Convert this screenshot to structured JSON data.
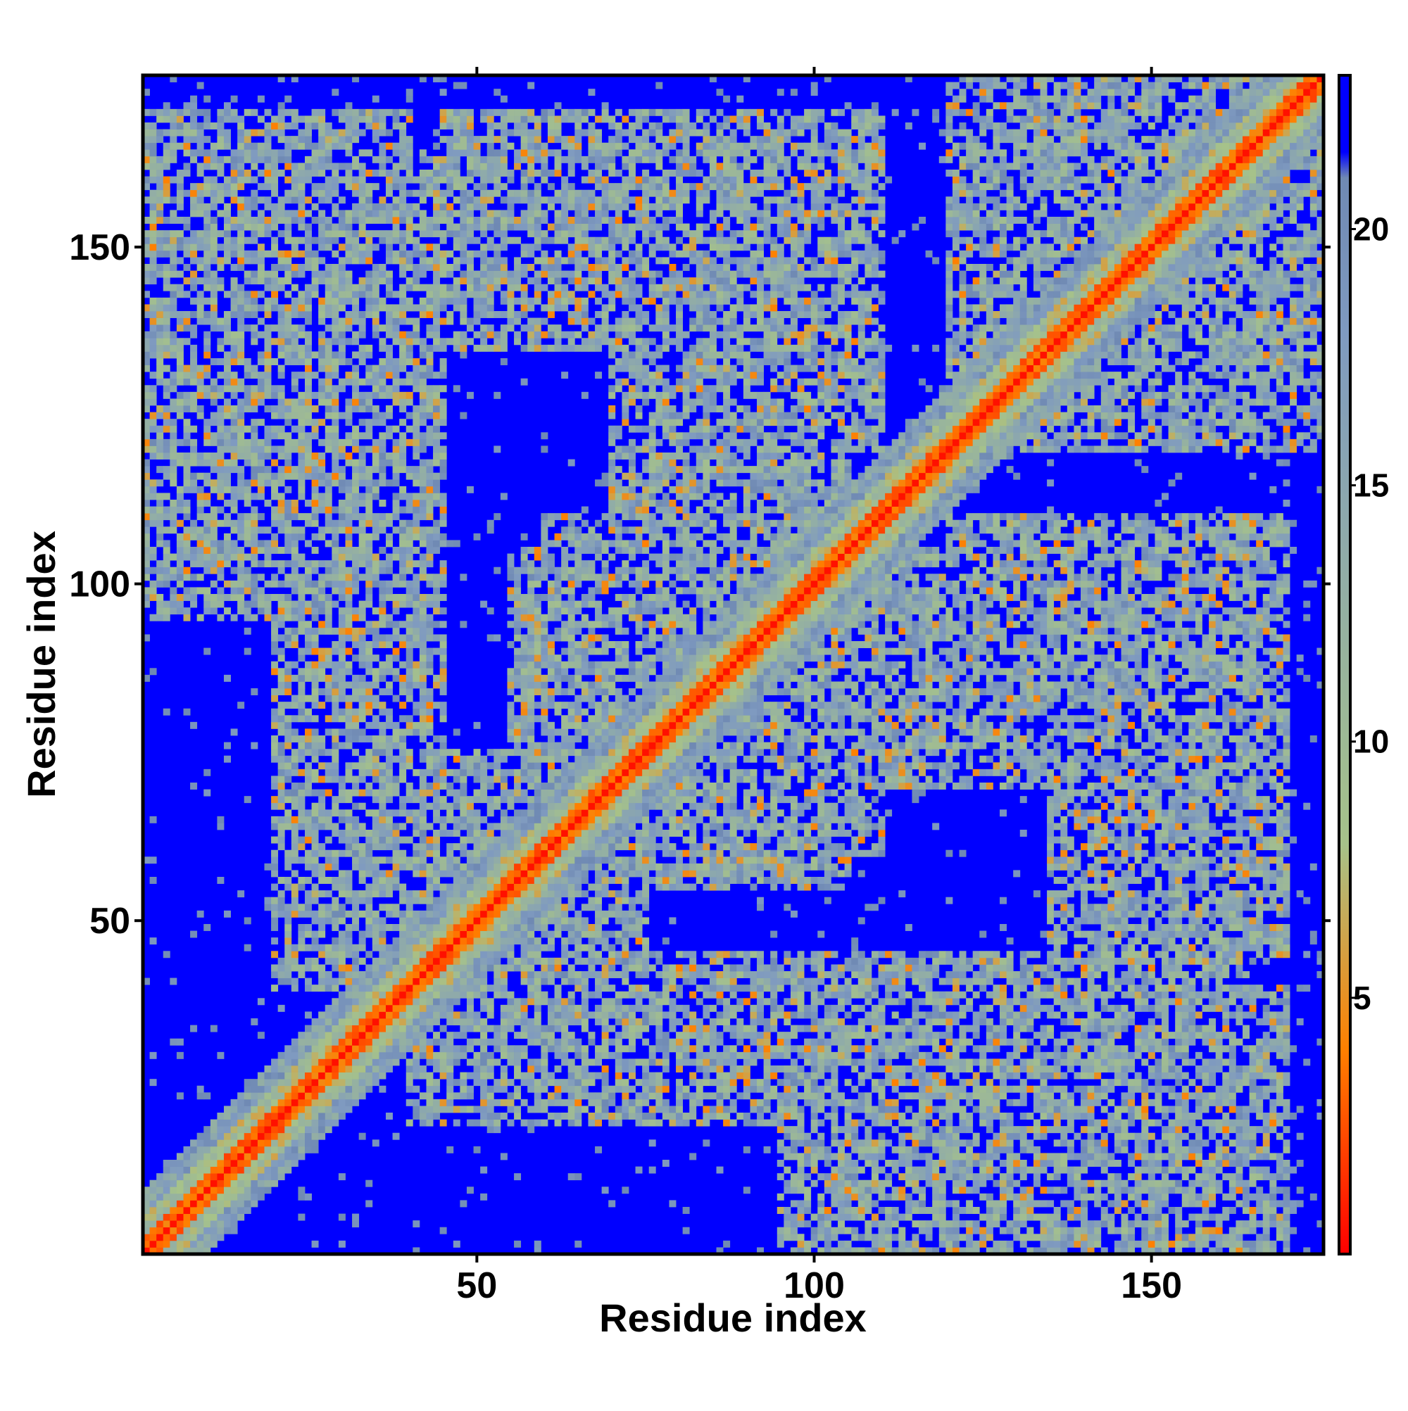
{
  "chart_data": {
    "type": "heatmap",
    "title": "",
    "xlabel": "Residue index",
    "ylabel": "Residue index",
    "n_residues": 175,
    "xlim": [
      1,
      175
    ],
    "ylim": [
      1,
      175
    ],
    "x_ticks": [
      50,
      100,
      150
    ],
    "y_ticks": [
      50,
      100,
      150
    ],
    "colorbar": {
      "ticks": [
        5,
        10,
        15,
        20
      ],
      "range": [
        0,
        23
      ],
      "stops": [
        {
          "value": 0,
          "color": "#ff0000"
        },
        {
          "value": 4,
          "color": "#ff8000"
        },
        {
          "value": 8,
          "color": "#a6c28a"
        },
        {
          "value": 18,
          "color": "#7f9ac0"
        },
        {
          "value": 21,
          "color": "#6f89b3"
        },
        {
          "value": 21.5,
          "color": "#0000ff"
        },
        {
          "value": 23,
          "color": "#0000ff"
        }
      ]
    },
    "background_value": 23,
    "grid": false,
    "contact_regions": [
      {
        "name": "diagonal",
        "x": [
          1,
          175
        ],
        "y": [
          1,
          175
        ],
        "level": "close"
      },
      {
        "x": [
          1,
          40
        ],
        "y": [
          140,
          170
        ],
        "level": "mid"
      },
      {
        "x": [
          1,
          35
        ],
        "y": [
          95,
          140
        ],
        "level": "mid"
      },
      {
        "x": [
          45,
          85
        ],
        "y": [
          135,
          170
        ],
        "level": "mid"
      },
      {
        "x": [
          60,
          105
        ],
        "y": [
          55,
          110
        ],
        "level": "mid"
      },
      {
        "x": [
          75,
          110
        ],
        "y": [
          120,
          165
        ],
        "level": "mid"
      },
      {
        "x": [
          95,
          135
        ],
        "y": [
          70,
          105
        ],
        "level": "mid"
      },
      {
        "x": [
          120,
          170
        ],
        "y": [
          130,
          175
        ],
        "level": "mid"
      },
      {
        "x": [
          135,
          165
        ],
        "y": [
          20,
          60
        ],
        "level": "mid"
      },
      {
        "x": [
          80,
          145
        ],
        "y": [
          20,
          45
        ],
        "level": "mid"
      },
      {
        "x": [
          40,
          75
        ],
        "y": [
          20,
          55
        ],
        "level": "mid"
      },
      {
        "x": [
          20,
          45
        ],
        "y": [
          60,
          95
        ],
        "level": "mid"
      },
      {
        "x": [
          150,
          170
        ],
        "y": [
          55,
          110
        ],
        "level": "mid"
      }
    ]
  }
}
